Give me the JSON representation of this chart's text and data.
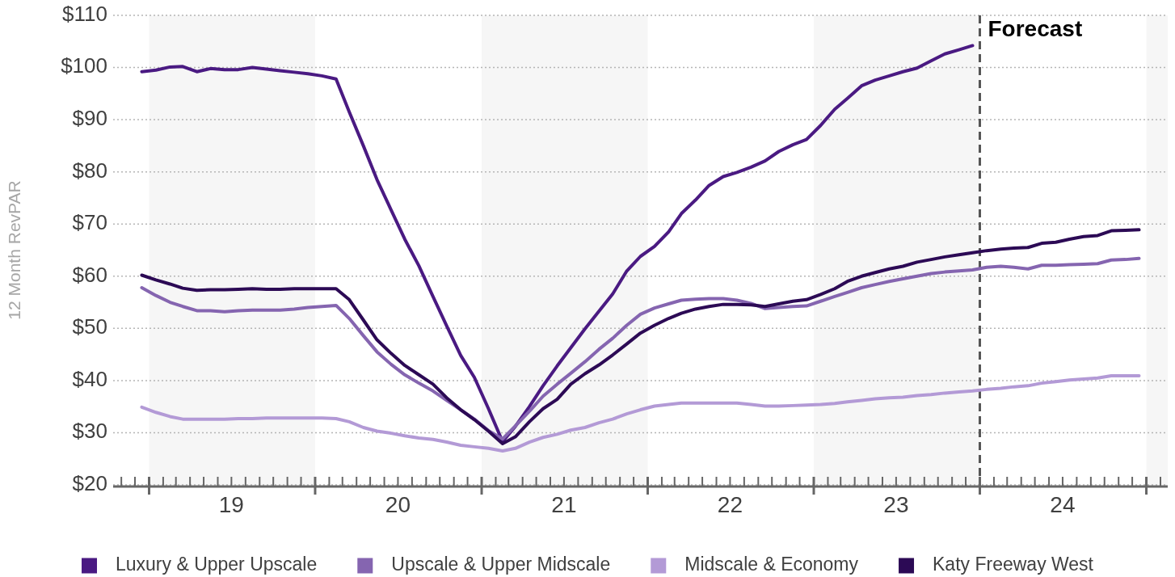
{
  "chart_data": {
    "type": "line",
    "ylabel": "12 Month RevPAR",
    "x": [
      "2018-12-16",
      "2019-01-16",
      "2019-02-16",
      "2019-03-16",
      "2019-04-16",
      "2019-05-16",
      "2019-06-16",
      "2019-07-16",
      "2019-08-16",
      "2019-09-16",
      "2019-10-16",
      "2019-11-16",
      "2019-12-16",
      "2020-01-16",
      "2020-02-16",
      "2020-03-16",
      "2020-04-16",
      "2020-05-16",
      "2020-06-16",
      "2020-07-16",
      "2020-08-16",
      "2020-09-16",
      "2020-10-16",
      "2020-11-16",
      "2020-12-16",
      "2021-01-16",
      "2021-02-16",
      "2021-03-16",
      "2021-04-16",
      "2021-05-16",
      "2021-06-16",
      "2021-07-16",
      "2021-08-16",
      "2021-09-16",
      "2021-10-16",
      "2021-11-16",
      "2021-12-16",
      "2022-01-16",
      "2022-02-16",
      "2022-03-16",
      "2022-04-16",
      "2022-05-16",
      "2022-06-16",
      "2022-07-16",
      "2022-08-16",
      "2022-09-16",
      "2022-10-16",
      "2022-11-16",
      "2022-12-16",
      "2023-01-16",
      "2023-02-16",
      "2023-03-16",
      "2023-04-16",
      "2023-05-16",
      "2023-06-16",
      "2023-07-16",
      "2023-08-16",
      "2023-09-16",
      "2023-10-16",
      "2023-11-16",
      "2023-12-16",
      "2024-01-16",
      "2024-02-16",
      "2024-03-16",
      "2024-04-16",
      "2024-05-16",
      "2024-06-16",
      "2024-07-16",
      "2024-08-16",
      "2024-09-16",
      "2024-10-16",
      "2024-11-16",
      "2024-12-16"
    ],
    "series": [
      {
        "name": "Luxury & Upper Upscale",
        "color": "#4a1a82",
        "values": [
          99.2,
          99.5,
          100.1,
          100.2,
          99.2,
          99.8,
          99.6,
          99.6,
          100.0,
          99.7,
          99.4,
          99.1,
          98.8,
          98.4,
          97.8,
          91.5,
          85.0,
          78.5,
          72.7,
          67.1,
          62.0,
          56.1,
          50.5,
          44.8,
          40.6,
          34.6,
          28.3,
          31.2,
          35.0,
          39.0,
          42.8,
          46.3,
          49.9,
          53.3,
          56.6,
          61.0,
          63.8,
          65.7,
          68.5,
          72.0,
          74.6,
          77.4,
          79.1,
          79.9,
          80.9,
          82.1,
          83.9,
          85.2,
          86.2,
          88.9,
          92.0,
          94.1,
          96.5,
          97.6,
          98.4,
          99.2,
          99.9,
          101.3,
          102.6,
          103.4,
          104.2,
          null,
          null,
          null,
          null,
          null,
          null,
          null,
          null,
          null,
          null,
          null,
          null
        ]
      },
      {
        "name": "Upscale & Upper Midscale",
        "color": "#8565b0",
        "values": [
          57.8,
          56.3,
          55.0,
          54.2,
          53.4,
          53.4,
          53.2,
          53.4,
          53.5,
          53.5,
          53.5,
          53.7,
          54.0,
          54.2,
          54.4,
          51.9,
          48.6,
          45.5,
          43.1,
          41.1,
          39.5,
          38.0,
          36.2,
          34.4,
          32.6,
          30.4,
          28.8,
          31.3,
          34.1,
          37.0,
          39.3,
          41.4,
          43.6,
          46.0,
          48.1,
          50.6,
          52.7,
          53.9,
          54.7,
          55.4,
          55.6,
          55.7,
          55.7,
          55.4,
          54.8,
          53.8,
          54.0,
          54.2,
          54.3,
          55.2,
          56.1,
          56.9,
          57.8,
          58.4,
          59.0,
          59.5,
          60.0,
          60.5,
          60.8,
          61.0,
          61.2,
          61.7,
          61.9,
          61.7,
          61.4,
          62.1,
          62.1,
          62.2,
          62.3,
          62.4,
          63.1,
          63.2,
          63.4
        ]
      },
      {
        "name": "Midscale & Economy",
        "color": "#b39ad6",
        "values": [
          34.9,
          33.9,
          33.1,
          32.6,
          32.6,
          32.6,
          32.6,
          32.7,
          32.7,
          32.8,
          32.8,
          32.8,
          32.8,
          32.8,
          32.7,
          32.1,
          31.0,
          30.3,
          29.9,
          29.4,
          29.0,
          28.7,
          28.2,
          27.6,
          27.3,
          27.0,
          26.5,
          27.0,
          28.2,
          29.1,
          29.7,
          30.5,
          31.0,
          31.9,
          32.6,
          33.6,
          34.4,
          35.1,
          35.4,
          35.7,
          35.7,
          35.7,
          35.7,
          35.7,
          35.4,
          35.1,
          35.1,
          35.2,
          35.3,
          35.4,
          35.6,
          35.9,
          36.2,
          36.5,
          36.7,
          36.8,
          37.1,
          37.3,
          37.6,
          37.8,
          38.0,
          38.3,
          38.5,
          38.8,
          39.0,
          39.5,
          39.8,
          40.1,
          40.3,
          40.5,
          40.9,
          40.9,
          40.9
        ]
      },
      {
        "name": "Katy Freeway West",
        "color": "#2c0a55",
        "values": [
          60.2,
          59.3,
          58.5,
          57.7,
          57.3,
          57.4,
          57.4,
          57.5,
          57.6,
          57.5,
          57.5,
          57.6,
          57.6,
          57.6,
          57.6,
          55.5,
          51.6,
          47.8,
          45.2,
          42.9,
          41.1,
          39.3,
          36.7,
          34.4,
          32.5,
          30.3,
          27.9,
          29.2,
          32.1,
          34.6,
          36.4,
          39.3,
          41.3,
          43.0,
          44.9,
          47.0,
          49.1,
          50.6,
          51.9,
          52.9,
          53.7,
          54.2,
          54.6,
          54.6,
          54.5,
          54.2,
          54.7,
          55.2,
          55.5,
          56.5,
          57.6,
          59.0,
          60.0,
          60.7,
          61.4,
          61.9,
          62.7,
          63.2,
          63.7,
          64.1,
          64.5,
          64.9,
          65.2,
          65.4,
          65.5,
          66.3,
          66.5,
          67.1,
          67.6,
          67.8,
          68.7,
          68.8,
          68.9
        ]
      }
    ],
    "xlim": [
      "2018-10-14",
      "2025-02-17"
    ],
    "xticks": [
      {
        "value": "2018-11",
        "label": null
      },
      {
        "value": "2018-12",
        "label": null
      },
      {
        "value": "2019-01",
        "label": null
      },
      {
        "value": "2019-02",
        "label": null
      },
      {
        "value": "2019-03",
        "label": null
      },
      {
        "value": "2019-04",
        "label": null
      },
      {
        "value": "2019-05",
        "label": null
      },
      {
        "value": "2019-06",
        "label": null
      },
      {
        "value": "2019-07",
        "label": "19"
      },
      {
        "value": "2019-08",
        "label": null
      },
      {
        "value": "2019-09",
        "label": null
      },
      {
        "value": "2019-10",
        "label": null
      },
      {
        "value": "2019-11",
        "label": null
      },
      {
        "value": "2019-12",
        "label": null
      },
      {
        "value": "2020-01",
        "label": null
      },
      {
        "value": "2020-02",
        "label": null
      },
      {
        "value": "2020-03",
        "label": null
      },
      {
        "value": "2020-04",
        "label": null
      },
      {
        "value": "2020-05",
        "label": null
      },
      {
        "value": "2020-06",
        "label": null
      },
      {
        "value": "2020-07",
        "label": "20"
      },
      {
        "value": "2020-08",
        "label": null
      },
      {
        "value": "2020-09",
        "label": null
      },
      {
        "value": "2020-10",
        "label": null
      },
      {
        "value": "2020-11",
        "label": null
      },
      {
        "value": "2020-12",
        "label": null
      },
      {
        "value": "2021-01",
        "label": null
      },
      {
        "value": "2021-02",
        "label": null
      },
      {
        "value": "2021-03",
        "label": null
      },
      {
        "value": "2021-04",
        "label": null
      },
      {
        "value": "2021-05",
        "label": null
      },
      {
        "value": "2021-06",
        "label": null
      },
      {
        "value": "2021-07",
        "label": "21"
      },
      {
        "value": "2021-08",
        "label": null
      },
      {
        "value": "2021-09",
        "label": null
      },
      {
        "value": "2021-10",
        "label": null
      },
      {
        "value": "2021-11",
        "label": null
      },
      {
        "value": "2021-12",
        "label": null
      },
      {
        "value": "2022-01",
        "label": null
      },
      {
        "value": "2022-02",
        "label": null
      },
      {
        "value": "2022-03",
        "label": null
      },
      {
        "value": "2022-04",
        "label": null
      },
      {
        "value": "2022-05",
        "label": null
      },
      {
        "value": "2022-06",
        "label": null
      },
      {
        "value": "2022-07",
        "label": "22"
      },
      {
        "value": "2022-08",
        "label": null
      },
      {
        "value": "2022-09",
        "label": null
      },
      {
        "value": "2022-10",
        "label": null
      },
      {
        "value": "2022-11",
        "label": null
      },
      {
        "value": "2022-12",
        "label": null
      },
      {
        "value": "2023-01",
        "label": null
      },
      {
        "value": "2023-02",
        "label": null
      },
      {
        "value": "2023-03",
        "label": null
      },
      {
        "value": "2023-04",
        "label": null
      },
      {
        "value": "2023-05",
        "label": null
      },
      {
        "value": "2023-06",
        "label": null
      },
      {
        "value": "2023-07",
        "label": "23"
      },
      {
        "value": "2023-08",
        "label": null
      },
      {
        "value": "2023-09",
        "label": null
      },
      {
        "value": "2023-10",
        "label": null
      },
      {
        "value": "2023-11",
        "label": null
      },
      {
        "value": "2023-12",
        "label": null
      },
      {
        "value": "2024-01",
        "label": null
      },
      {
        "value": "2024-02",
        "label": null
      },
      {
        "value": "2024-03",
        "label": null
      },
      {
        "value": "2024-04",
        "label": null
      },
      {
        "value": "2024-05",
        "label": null
      },
      {
        "value": "2024-06",
        "label": null
      },
      {
        "value": "2024-07",
        "label": "24"
      },
      {
        "value": "2024-08",
        "label": null
      },
      {
        "value": "2024-09",
        "label": null
      },
      {
        "value": "2024-10",
        "label": null
      },
      {
        "value": "2024-11",
        "label": null
      },
      {
        "value": "2024-12",
        "label": null
      },
      {
        "value": "2025-01",
        "label": null
      },
      {
        "value": "2025-02",
        "label": null
      }
    ],
    "ylim": [
      20,
      110
    ],
    "yticks": [
      {
        "value": 20,
        "label": "$20"
      },
      {
        "value": 30,
        "label": "$30"
      },
      {
        "value": 40,
        "label": "$40"
      },
      {
        "value": 50,
        "label": "$50"
      },
      {
        "value": 60,
        "label": "$60"
      },
      {
        "value": 70,
        "label": "$70"
      },
      {
        "value": 80,
        "label": "$80"
      },
      {
        "value": 90,
        "label": "$90"
      },
      {
        "value": 100,
        "label": "$100"
      },
      {
        "value": 110,
        "label": "$110"
      }
    ],
    "grid": "y",
    "legend": "bottom",
    "bands": [
      {
        "axis": "x",
        "from": "2019-01",
        "to": "2020-01",
        "color": "#f6f6f6"
      },
      {
        "axis": "x",
        "from": "2021-01",
        "to": "2022-01",
        "color": "#f6f6f6"
      },
      {
        "axis": "x",
        "from": "2023-01",
        "to": "2024-01",
        "color": "#f6f6f6"
      },
      {
        "axis": "x",
        "from": "2025-01",
        "to": "2025-02-17",
        "color": "#f6f6f6"
      }
    ],
    "ref_lines": [
      {
        "axis": "x",
        "value": "2024-01",
        "label": "Forecast",
        "line_style": "dashed",
        "color": "#555555"
      }
    ]
  }
}
